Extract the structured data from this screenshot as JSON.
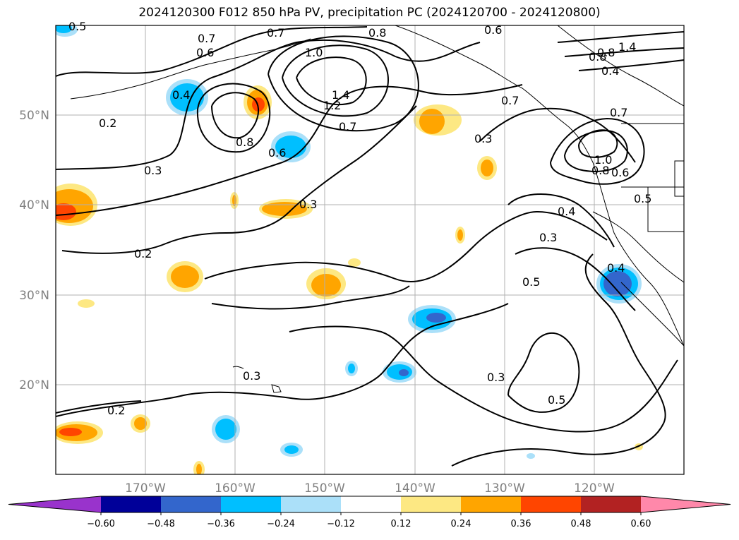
{
  "title": "2024120300 F012 850 hPa PV, precipitation PC (2024120700 - 2024120800)",
  "map": {
    "lon_range": [
      -180,
      -110
    ],
    "lat_range": [
      10,
      60
    ],
    "lat_labels": [
      {
        "lat": 50,
        "text": "50°N"
      },
      {
        "lat": 40,
        "text": "40°N"
      },
      {
        "lat": 30,
        "text": "30°N"
      },
      {
        "lat": 20,
        "text": "20°N"
      }
    ],
    "lon_labels": [
      {
        "lon": -170,
        "text": "170°W"
      },
      {
        "lon": -160,
        "text": "160°W"
      },
      {
        "lon": -150,
        "text": "150°W"
      },
      {
        "lon": -140,
        "text": "140°W"
      },
      {
        "lon": -130,
        "text": "130°W"
      },
      {
        "lon": -120,
        "text": "120°W"
      }
    ],
    "contour_labels": [
      "0.5",
      "0.7",
      "0.6",
      "0.7",
      "0.8",
      "0.6",
      "1.4",
      "0.8",
      "0.8",
      "0.4",
      "1.0",
      "1.4",
      "1.2",
      "0.4",
      "0.2",
      "0.7",
      "0.8",
      "0.6",
      "0.7",
      "0.3",
      "0.7",
      "0.3",
      "1.0",
      "0.8",
      "0.6",
      "0.5",
      "0.3",
      "0.4",
      "0.3",
      "0.2",
      "0.5",
      "0.4",
      "0.3",
      "0.3",
      "0.5",
      "0.2"
    ]
  },
  "colorbar": {
    "colors": [
      "#9933cc",
      "#000099",
      "#3366cc",
      "#00bfff",
      "#abe0f9",
      "#ffffff",
      "#fde883",
      "#ffa500",
      "#ff4500",
      "#b22222",
      "#ff88aa"
    ],
    "ticks": [
      "−0.60",
      "−0.48",
      "−0.36",
      "−0.24",
      "−0.12",
      "0.12",
      "0.24",
      "0.36",
      "0.48",
      "0.60"
    ]
  }
}
